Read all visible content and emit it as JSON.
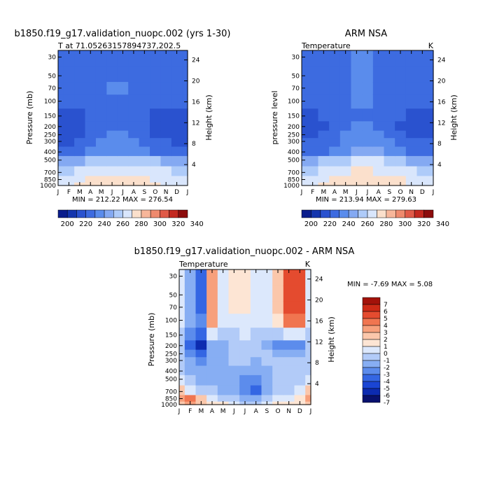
{
  "colors": {
    "abs_levels": [
      "#0a1d8c",
      "#1435ad",
      "#2a52cf",
      "#3d6be0",
      "#5a8cec",
      "#84a9f2",
      "#aecbf9",
      "#d9e6fc",
      "#fbe0cc",
      "#f7b69a",
      "#ee8a6e",
      "#e05a48",
      "#c3281f",
      "#8c0c0c"
    ],
    "diff_levels": [
      "#08116e",
      "#0c2bb0",
      "#1a45d4",
      "#3466e3",
      "#5c8cec",
      "#87aef3",
      "#b2cbf8",
      "#dce8fc",
      "#fde5d4",
      "#fbc7ab",
      "#f7a07c",
      "#f07550",
      "#e44b2f",
      "#cd2a16",
      "#a3120a"
    ]
  },
  "chart_data": [
    {
      "type": "heatmap",
      "title": "b1850.f19_g17.validation_nuopc.002 (yrs 1-30)",
      "subtitle_left": "T at 71.05263157894737,202.5",
      "subtitle_right": "",
      "ylabel": "Pressure (mb)",
      "ylabel_right": "Height (km)",
      "x_ticks": [
        "J",
        "F",
        "M",
        "A",
        "M",
        "J",
        "J",
        "A",
        "S",
        "O",
        "N",
        "D",
        "J"
      ],
      "y_ticks": [
        30,
        50,
        70,
        100,
        150,
        200,
        250,
        300,
        400,
        500,
        700,
        850,
        1000
      ],
      "y_ticks_right": [
        24,
        20,
        16,
        12,
        8,
        4
      ],
      "stats": "MIN = 212.22  MAX = 276.54",
      "min": 212.22,
      "max": 276.54,
      "colorbar_labels": [
        "200",
        "220",
        "240",
        "260",
        "280",
        "300",
        "320",
        "340"
      ],
      "colorbar_levels": [
        190,
        200,
        210,
        220,
        230,
        240,
        250,
        260,
        270,
        280,
        290,
        300,
        310,
        320,
        330,
        340,
        350
      ],
      "pressure_levels": [
        30,
        50,
        70,
        100,
        150,
        200,
        250,
        300,
        400,
        500,
        700,
        850,
        1000
      ],
      "values_by_month": [
        [
          222,
          222,
          222,
          222,
          216,
          215,
          216,
          219,
          224,
          244,
          258,
          264,
          266
        ],
        [
          221,
          221,
          221,
          221,
          216,
          214,
          216,
          219,
          224,
          245,
          259,
          265,
          267
        ],
        [
          221,
          221,
          221,
          222,
          218,
          216,
          218,
          221,
          227,
          249,
          262,
          268,
          270
        ],
        [
          223,
          223,
          223,
          224,
          221,
          220,
          222,
          225,
          232,
          253,
          264,
          270,
          272
        ],
        [
          226,
          226,
          227,
          226,
          225,
          226,
          228,
          231,
          237,
          257,
          266,
          273,
          275
        ],
        [
          228,
          229,
          230,
          229,
          228,
          229,
          230,
          233,
          239,
          259,
          268,
          275,
          277
        ],
        [
          228,
          229,
          230,
          229,
          228,
          229,
          230,
          233,
          239,
          259,
          268,
          275,
          276
        ],
        [
          227,
          227,
          228,
          227,
          226,
          227,
          228,
          231,
          238,
          258,
          266,
          274,
          276
        ],
        [
          224,
          224,
          224,
          224,
          222,
          222,
          224,
          228,
          235,
          256,
          265,
          272,
          274
        ],
        [
          222,
          222,
          222,
          222,
          218,
          217,
          219,
          223,
          229,
          251,
          263,
          269,
          270
        ],
        [
          221,
          221,
          221,
          221,
          216,
          214,
          216,
          220,
          225,
          247,
          260,
          265,
          267
        ],
        [
          221,
          221,
          221,
          221,
          216,
          214,
          216,
          219,
          224,
          245,
          258,
          264,
          266
        ],
        [
          222,
          222,
          222,
          222,
          216,
          215,
          216,
          219,
          224,
          244,
          258,
          264,
          266
        ]
      ]
    },
    {
      "type": "heatmap",
      "title": "ARM NSA",
      "subtitle_left": "Temperature",
      "subtitle_right": "K",
      "ylabel": "pressure level",
      "ylabel_right": "Height (km)",
      "x_ticks": [
        "J",
        "F",
        "M",
        "A",
        "M",
        "J",
        "J",
        "A",
        "S",
        "O",
        "N",
        "D",
        "J"
      ],
      "y_ticks": [
        30,
        50,
        70,
        100,
        150,
        200,
        250,
        300,
        400,
        500,
        700,
        850,
        1000
      ],
      "y_ticks_right": [
        24,
        20,
        16,
        12,
        8,
        4
      ],
      "stats": "MIN = 213.94  MAX = 279.63",
      "min": 213.94,
      "max": 279.63,
      "colorbar_labels": [
        "200",
        "220",
        "240",
        "260",
        "280",
        "300",
        "320",
        "340"
      ],
      "colorbar_levels": [
        190,
        200,
        210,
        220,
        230,
        240,
        250,
        260,
        270,
        280,
        290,
        300,
        310,
        320,
        330,
        340,
        350
      ],
      "pressure_levels": [
        30,
        50,
        70,
        100,
        150,
        200,
        250,
        300,
        400,
        500,
        700,
        850,
        1000
      ],
      "values_by_month": [
        [
          222,
          222,
          222,
          222,
          218,
          216,
          218,
          221,
          225,
          245,
          258,
          264,
          266
        ],
        [
          222,
          222,
          222,
          222,
          218,
          216,
          218,
          221,
          226,
          246,
          259,
          265,
          267
        ],
        [
          223,
          223,
          223,
          223,
          220,
          218,
          220,
          223,
          229,
          250,
          262,
          268,
          270
        ],
        [
          225,
          225,
          225,
          225,
          223,
          222,
          224,
          227,
          233,
          254,
          265,
          271,
          273
        ],
        [
          228,
          228,
          228,
          228,
          227,
          228,
          230,
          233,
          239,
          258,
          268,
          275,
          277
        ],
        [
          230,
          230,
          231,
          230,
          229,
          230,
          232,
          235,
          241,
          261,
          270,
          277,
          279
        ],
        [
          230,
          231,
          231,
          230,
          229,
          230,
          232,
          235,
          241,
          261,
          270,
          277,
          279
        ],
        [
          229,
          229,
          229,
          228,
          228,
          229,
          230,
          233,
          240,
          260,
          268,
          276,
          278
        ],
        [
          226,
          226,
          226,
          226,
          224,
          224,
          226,
          230,
          236,
          257,
          266,
          273,
          275
        ],
        [
          224,
          224,
          224,
          223,
          220,
          219,
          221,
          225,
          231,
          252,
          264,
          270,
          271
        ],
        [
          222,
          222,
          222,
          222,
          218,
          216,
          218,
          221,
          226,
          248,
          261,
          266,
          268
        ],
        [
          222,
          222,
          222,
          222,
          218,
          216,
          218,
          221,
          225,
          246,
          259,
          265,
          267
        ],
        [
          222,
          222,
          222,
          222,
          218,
          216,
          218,
          221,
          225,
          245,
          258,
          264,
          266
        ]
      ]
    },
    {
      "type": "heatmap",
      "title": "b1850.f19_g17.validation_nuopc.002 - ARM NSA",
      "subtitle_left": "Temperature",
      "subtitle_right": "K",
      "ylabel": "Pressure (mb)",
      "ylabel_right": "Height (km)",
      "x_ticks": [
        "J",
        "F",
        "M",
        "A",
        "M",
        "J",
        "J",
        "A",
        "S",
        "O",
        "N",
        "D",
        "J"
      ],
      "y_ticks": [
        30,
        50,
        70,
        100,
        150,
        200,
        250,
        300,
        400,
        500,
        700,
        850,
        1000
      ],
      "y_ticks_right": [
        24,
        20,
        16,
        12,
        8,
        4
      ],
      "stats": "MIN =   -7.69 MAX =    5.08",
      "min": -7.69,
      "max": 5.08,
      "colorbar_labels": [
        "7",
        "6",
        "5",
        "4",
        "3",
        "2",
        "1",
        "0",
        "-1",
        "-2",
        "-3",
        "-4",
        "-5",
        "-6",
        "-7"
      ],
      "colorbar_levels": [
        -7,
        -6,
        -5,
        -4,
        -3,
        -2,
        -1,
        0,
        1,
        2,
        3,
        4,
        5,
        6,
        7
      ],
      "pressure_levels": [
        30,
        50,
        70,
        100,
        150,
        200,
        250,
        300,
        400,
        500,
        700,
        850,
        1000
      ],
      "values_by_month": [
        [
          -1,
          -1,
          -1,
          -1,
          -2,
          -2,
          -2,
          -2,
          -2,
          -1,
          1,
          2,
          1
        ],
        [
          -3,
          -3,
          -3,
          -3,
          -4,
          -5,
          -4,
          -3,
          -3,
          -2,
          -1,
          3,
          2
        ],
        [
          -5,
          -5,
          -5,
          -4,
          -5,
          -7,
          -5,
          -4,
          -3,
          -3,
          -2,
          1,
          1
        ],
        [
          2,
          2,
          2,
          2,
          -1,
          -3,
          -3,
          -3,
          -3,
          -3,
          -2,
          -1,
          0
        ],
        [
          -1,
          -1,
          -1,
          -1,
          -2,
          -3,
          -3,
          -3,
          -3,
          -3,
          -3,
          -2,
          0
        ],
        [
          0,
          0,
          0,
          -1,
          -2,
          -2,
          -2,
          -2,
          -3,
          -3,
          -3,
          -2,
          -1
        ],
        [
          0,
          0,
          0,
          -1,
          -1,
          -2,
          -2,
          -2,
          -3,
          -4,
          -4,
          -3,
          -2
        ],
        [
          -1,
          -1,
          -1,
          -1,
          -2,
          -2,
          -2,
          -3,
          -3,
          -4,
          -5,
          -3,
          -2
        ],
        [
          -1,
          -1,
          -1,
          -1,
          -2,
          -3,
          -2,
          -2,
          -3,
          -3,
          -3,
          -2,
          -1
        ],
        [
          1,
          1,
          1,
          0,
          -2,
          -4,
          -3,
          -2,
          -2,
          -2,
          -2,
          -1,
          0
        ],
        [
          4,
          4,
          4,
          3,
          -1,
          -4,
          -3,
          -2,
          -2,
          -2,
          -2,
          -1,
          0
        ],
        [
          4,
          4,
          4,
          3,
          -1,
          -4,
          -3,
          -2,
          -2,
          -2,
          -1,
          0,
          0
        ],
        [
          -1,
          -1,
          -1,
          -1,
          -2,
          -2,
          -2,
          -2,
          -2,
          -1,
          1,
          2,
          1
        ]
      ]
    }
  ]
}
